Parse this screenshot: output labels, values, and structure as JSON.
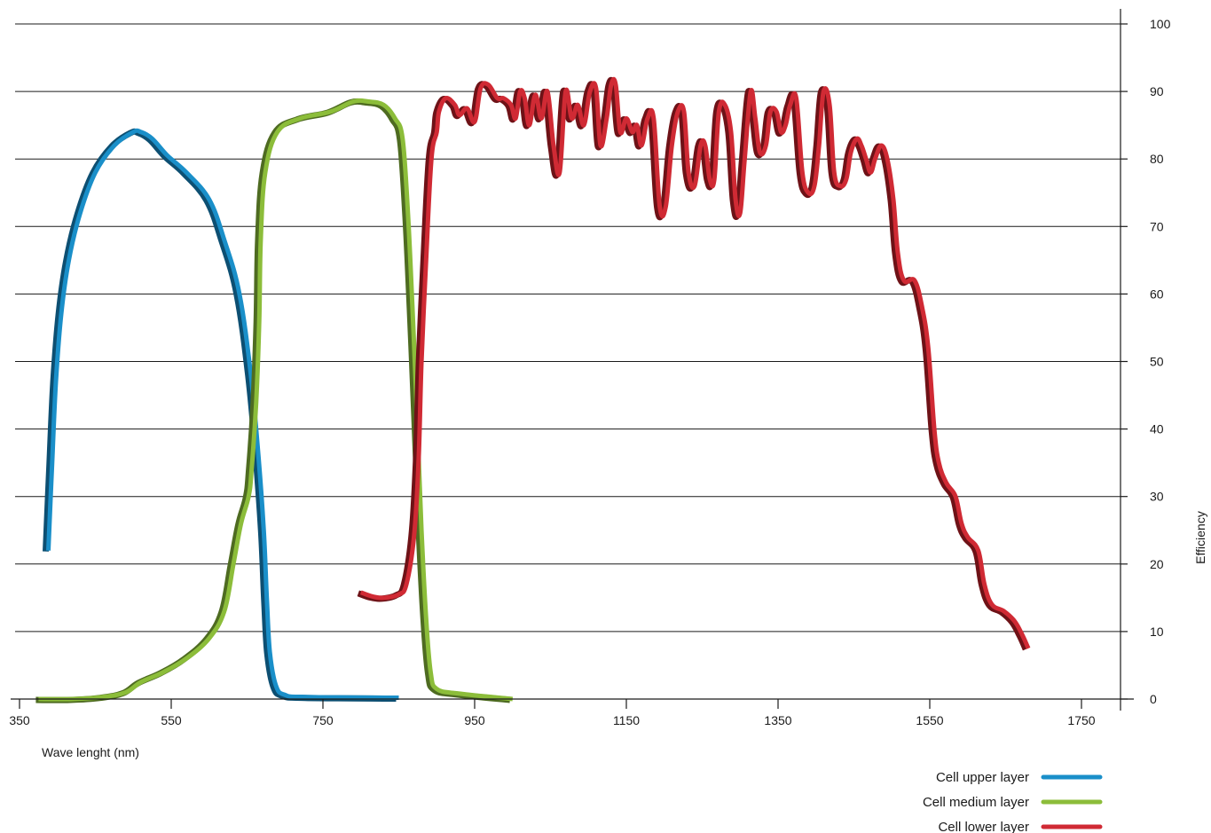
{
  "chart_data": {
    "type": "line",
    "title": "",
    "xlabel": "Wave lenght (nm)",
    "ylabel": "Efficiency",
    "xlim": [
      350,
      1800
    ],
    "ylim": [
      0,
      100
    ],
    "x_ticks": [
      350,
      550,
      750,
      950,
      1150,
      1350,
      1550,
      1750
    ],
    "y_ticks": [
      0,
      10,
      20,
      30,
      40,
      50,
      60,
      70,
      80,
      90,
      100
    ],
    "grid": "horizontal",
    "y_axis_position": "right",
    "legend_position": "bottom-right",
    "series": [
      {
        "name": "Cell upper layer",
        "color": "#1a8fc9",
        "shadow_color": "#0d4f72",
        "points": [
          [
            388,
            22
          ],
          [
            393,
            35
          ],
          [
            398,
            47
          ],
          [
            405,
            57
          ],
          [
            415,
            65
          ],
          [
            430,
            72
          ],
          [
            450,
            78
          ],
          [
            475,
            82
          ],
          [
            500,
            84
          ],
          [
            510,
            84
          ],
          [
            525,
            83
          ],
          [
            545,
            80.5
          ],
          [
            570,
            78
          ],
          [
            600,
            74
          ],
          [
            620,
            68
          ],
          [
            640,
            60
          ],
          [
            655,
            48
          ],
          [
            665,
            36
          ],
          [
            672,
            25
          ],
          [
            676,
            15
          ],
          [
            680,
            7
          ],
          [
            688,
            2
          ],
          [
            700,
            0.6
          ],
          [
            730,
            0.3
          ],
          [
            850,
            0.2
          ]
        ]
      },
      {
        "name": "Cell medium layer",
        "color": "#8cbd3a",
        "shadow_color": "#4e6b21",
        "points": [
          [
            375,
            0
          ],
          [
            420,
            0
          ],
          [
            460,
            0.3
          ],
          [
            490,
            1
          ],
          [
            510,
            2.5
          ],
          [
            540,
            4
          ],
          [
            570,
            6
          ],
          [
            600,
            9
          ],
          [
            620,
            13
          ],
          [
            632,
            20
          ],
          [
            642,
            26
          ],
          [
            652,
            30
          ],
          [
            656,
            34
          ],
          [
            662,
            44
          ],
          [
            666,
            56
          ],
          [
            668,
            68
          ],
          [
            674,
            78
          ],
          [
            690,
            84
          ],
          [
            720,
            86
          ],
          [
            760,
            87
          ],
          [
            790,
            88.5
          ],
          [
            810,
            88.5
          ],
          [
            830,
            88
          ],
          [
            845,
            86
          ],
          [
            855,
            83
          ],
          [
            862,
            72
          ],
          [
            868,
            58
          ],
          [
            874,
            42
          ],
          [
            880,
            25
          ],
          [
            886,
            12
          ],
          [
            892,
            4
          ],
          [
            900,
            1.5
          ],
          [
            930,
            0.8
          ],
          [
            1000,
            0
          ]
        ]
      },
      {
        "name": "Cell lower layer",
        "color": "#d02a34",
        "shadow_color": "#6e1217",
        "points": [
          [
            800,
            15.8
          ],
          [
            815,
            15.2
          ],
          [
            830,
            15
          ],
          [
            850,
            15.5
          ],
          [
            860,
            17
          ],
          [
            870,
            24
          ],
          [
            876,
            35
          ],
          [
            880,
            50
          ],
          [
            886,
            65
          ],
          [
            893,
            80
          ],
          [
            900,
            84
          ],
          [
            903,
            87
          ],
          [
            912,
            89
          ],
          [
            924,
            88
          ],
          [
            930,
            86.5
          ],
          [
            940,
            87.5
          ],
          [
            950,
            85.5
          ],
          [
            958,
            90.5
          ],
          [
            968,
            91
          ],
          [
            980,
            89
          ],
          [
            988,
            89
          ],
          [
            998,
            88
          ],
          [
            1004,
            86
          ],
          [
            1010,
            90
          ],
          [
            1016,
            89
          ],
          [
            1022,
            85
          ],
          [
            1030,
            89.5
          ],
          [
            1038,
            86
          ],
          [
            1046,
            90
          ],
          [
            1054,
            82
          ],
          [
            1062,
            78
          ],
          [
            1070,
            90
          ],
          [
            1078,
            86
          ],
          [
            1086,
            88
          ],
          [
            1094,
            85
          ],
          [
            1102,
            90
          ],
          [
            1110,
            90.5
          ],
          [
            1116,
            82
          ],
          [
            1124,
            86
          ],
          [
            1130,
            91
          ],
          [
            1136,
            91
          ],
          [
            1142,
            84
          ],
          [
            1150,
            86
          ],
          [
            1158,
            84
          ],
          [
            1164,
            85
          ],
          [
            1170,
            82
          ],
          [
            1178,
            86
          ],
          [
            1186,
            86
          ],
          [
            1194,
            73
          ],
          [
            1202,
            73
          ],
          [
            1210,
            82
          ],
          [
            1218,
            87
          ],
          [
            1226,
            87
          ],
          [
            1232,
            78
          ],
          [
            1240,
            76
          ],
          [
            1248,
            82
          ],
          [
            1254,
            82
          ],
          [
            1260,
            77
          ],
          [
            1266,
            77
          ],
          [
            1272,
            87
          ],
          [
            1280,
            88
          ],
          [
            1288,
            84
          ],
          [
            1294,
            74
          ],
          [
            1300,
            72
          ],
          [
            1306,
            80
          ],
          [
            1314,
            90
          ],
          [
            1320,
            86
          ],
          [
            1326,
            81
          ],
          [
            1334,
            82
          ],
          [
            1340,
            87
          ],
          [
            1348,
            87
          ],
          [
            1354,
            84
          ],
          [
            1360,
            85
          ],
          [
            1366,
            88
          ],
          [
            1374,
            89
          ],
          [
            1382,
            78
          ],
          [
            1390,
            75
          ],
          [
            1398,
            76
          ],
          [
            1404,
            82
          ],
          [
            1410,
            90
          ],
          [
            1418,
            88
          ],
          [
            1424,
            78
          ],
          [
            1432,
            76
          ],
          [
            1440,
            77
          ],
          [
            1446,
            81
          ],
          [
            1454,
            83
          ],
          [
            1460,
            82
          ],
          [
            1466,
            80
          ],
          [
            1472,
            78
          ],
          [
            1478,
            80
          ],
          [
            1486,
            82
          ],
          [
            1494,
            80
          ],
          [
            1502,
            74
          ],
          [
            1508,
            66
          ],
          [
            1516,
            62
          ],
          [
            1530,
            62
          ],
          [
            1540,
            58
          ],
          [
            1548,
            52
          ],
          [
            1556,
            40
          ],
          [
            1562,
            35
          ],
          [
            1572,
            32
          ],
          [
            1584,
            30
          ],
          [
            1592,
            26
          ],
          [
            1600,
            24
          ],
          [
            1614,
            22
          ],
          [
            1622,
            17
          ],
          [
            1632,
            14
          ],
          [
            1648,
            13
          ],
          [
            1662,
            11.5
          ],
          [
            1672,
            9.5
          ],
          [
            1680,
            7.5
          ]
        ]
      }
    ]
  }
}
